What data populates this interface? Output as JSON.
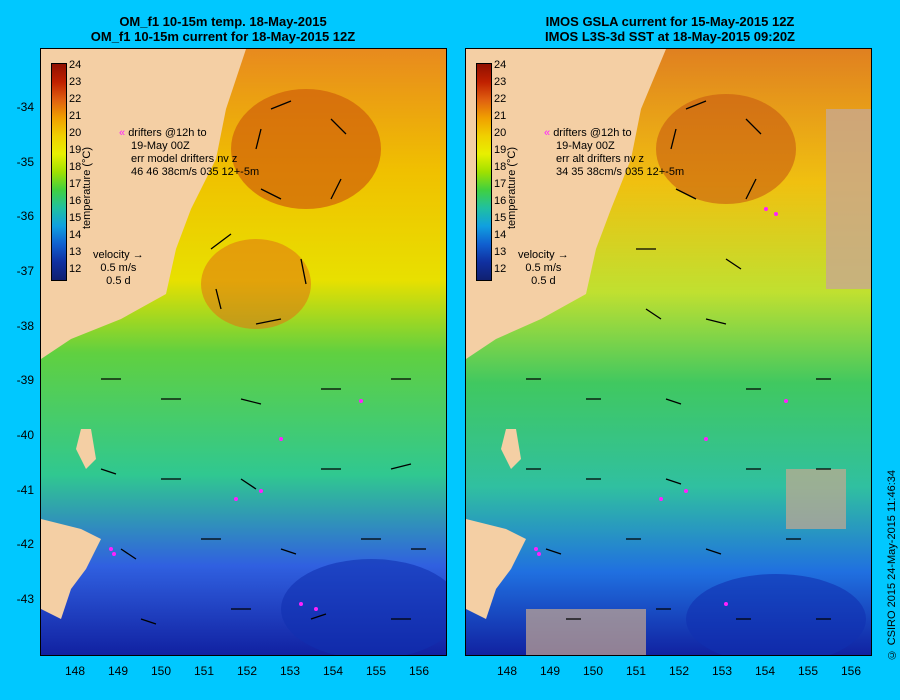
{
  "left_panel": {
    "title_line1": "OM_f1 10-15m temp. 18-May-2015",
    "title_line2": "OM_f1 10-15m current for 18-May-2015 12Z",
    "note_line1": "drifters @12h to",
    "note_line2": "19-May 00Z",
    "note_line3": "err model drifters nv z",
    "note_line4": "46   46    38cm/s 035 12+-5m"
  },
  "right_panel": {
    "title_line1": "IMOS GSLA current for 15-May-2015 12Z",
    "title_line2": "IMOS L3S-3d SST at 18-May-2015 09:20Z",
    "note_line1": "drifters @12h to",
    "note_line2": "19-May 00Z",
    "note_line3": "err alt drifters nv z",
    "note_line4": "34 35 38cm/s 035 12+-5m"
  },
  "colorbar": {
    "title": "temperature (°C)",
    "ticks": [
      "24",
      "23",
      "22",
      "21",
      "20",
      "19",
      "18",
      "17",
      "16",
      "15",
      "14",
      "13",
      "12"
    ]
  },
  "velocity_key": {
    "label": "velocity",
    "speed": "0.5 m/s",
    "duration": "0.5 d"
  },
  "lat_ticks": [
    "-34",
    "-35",
    "-36",
    "-37",
    "-38",
    "-39",
    "-40",
    "-41",
    "-42",
    "-43"
  ],
  "lon_ticks": [
    "148",
    "149",
    "150",
    "151",
    "152",
    "153",
    "154",
    "155",
    "156"
  ],
  "copyright": "© CSIRO 2015   24-May-2015 11:46:34",
  "colors": {
    "background": "#00c8ff",
    "land": "#f4cfa4",
    "warm": "#e07a1a",
    "cool": "#1030c0"
  }
}
